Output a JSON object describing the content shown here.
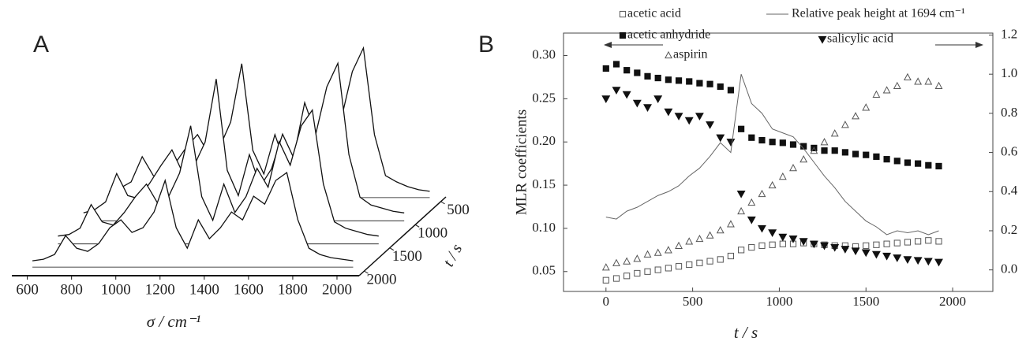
{
  "chart_data": [
    {
      "type": "waterfall",
      "panel_label": "A",
      "xlabel": "σ / cm⁻¹",
      "zlabel": "t / s",
      "xlim": [
        530,
        2100
      ],
      "xticks": [
        600,
        800,
        1000,
        1200,
        1400,
        1600,
        1800,
        2000
      ],
      "zlim": [
        400,
        2100
      ],
      "zticks": [
        500,
        1000,
        1500,
        2000
      ],
      "color": "#111111",
      "x": [
        600,
        650,
        700,
        750,
        800,
        850,
        900,
        950,
        1000,
        1050,
        1100,
        1150,
        1200,
        1250,
        1300,
        1350,
        1400,
        1450,
        1500,
        1550,
        1600,
        1650,
        1700,
        1750,
        1800,
        1850,
        1900,
        1950,
        2000,
        2050
      ],
      "spectra": [
        {
          "t": 500,
          "values": [
            0.04,
            0.06,
            0.1,
            0.26,
            0.14,
            0.12,
            0.22,
            0.32,
            0.4,
            0.28,
            0.32,
            0.48,
            0.85,
            0.3,
            0.15,
            0.4,
            0.2,
            0.3,
            0.5,
            0.38,
            0.7,
            0.5,
            0.8,
            0.95,
            0.4,
            0.14,
            0.1,
            0.07,
            0.05,
            0.04
          ]
        },
        {
          "t": 1000,
          "values": [
            0.05,
            0.07,
            0.12,
            0.3,
            0.16,
            0.14,
            0.24,
            0.35,
            0.45,
            0.3,
            0.35,
            0.5,
            0.9,
            0.32,
            0.16,
            0.42,
            0.22,
            0.33,
            0.55,
            0.4,
            0.75,
            0.55,
            0.85,
            1.0,
            0.42,
            0.15,
            0.1,
            0.08,
            0.06,
            0.05
          ]
        },
        {
          "t": 1500,
          "values": [
            0.05,
            0.06,
            0.1,
            0.25,
            0.14,
            0.12,
            0.2,
            0.3,
            0.38,
            0.26,
            0.3,
            0.45,
            0.75,
            0.3,
            0.15,
            0.38,
            0.2,
            0.3,
            0.48,
            0.36,
            0.65,
            0.5,
            0.75,
            0.85,
            0.38,
            0.14,
            0.1,
            0.08,
            0.06,
            0.05
          ]
        },
        {
          "t": 2000,
          "values": [
            0.04,
            0.05,
            0.08,
            0.2,
            0.12,
            0.1,
            0.15,
            0.25,
            0.3,
            0.22,
            0.25,
            0.35,
            0.55,
            0.25,
            0.12,
            0.3,
            0.18,
            0.25,
            0.35,
            0.3,
            0.45,
            0.4,
            0.55,
            0.6,
            0.3,
            0.12,
            0.08,
            0.06,
            0.05,
            0.04
          ]
        }
      ]
    },
    {
      "type": "scatter",
      "panel_label": "B",
      "xlabel": "t / s",
      "ylabel": "MLR coefficients",
      "xlim": [
        -245,
        2232
      ],
      "xticks": [
        0,
        500,
        1000,
        1500,
        2000
      ],
      "ylim": [
        0.027,
        0.326
      ],
      "yticks": [
        {
          "value": 0.05,
          "label": "0.05"
        },
        {
          "value": 0.1,
          "label": "0.10"
        },
        0.15,
        {
          "value": 0.2,
          "label": "0.20"
        },
        0.25,
        {
          "value": 0.3,
          "label": "0.30"
        }
      ],
      "y2lim": [
        -0.11,
        1.21
      ],
      "y2ticks": [
        {
          "value": 0,
          "label": "0.0"
        },
        0.2,
        0.4,
        0.6,
        0.8,
        {
          "value": 1,
          "label": "1.0"
        },
        1.2
      ],
      "x": [
        0,
        60,
        120,
        180,
        240,
        300,
        360,
        420,
        480,
        540,
        600,
        660,
        720,
        780,
        840,
        900,
        960,
        1020,
        1080,
        1140,
        1200,
        1260,
        1320,
        1380,
        1440,
        1500,
        1560,
        1620,
        1680,
        1740,
        1800,
        1860,
        1920
      ],
      "series": [
        {
          "name": "acetic acid",
          "marker": "open-square",
          "color": "#555555",
          "values": [
            0.04,
            0.042,
            0.045,
            0.048,
            0.05,
            0.052,
            0.054,
            0.056,
            0.058,
            0.06,
            0.062,
            0.064,
            0.068,
            0.075,
            0.078,
            0.08,
            0.081,
            0.082,
            0.082,
            0.083,
            0.082,
            0.081,
            0.08,
            0.08,
            0.079,
            0.08,
            0.081,
            0.082,
            0.083,
            0.084,
            0.085,
            0.086,
            0.085
          ]
        },
        {
          "name": "acetic anhydride",
          "marker": "filled-square",
          "color": "#111111",
          "values": [
            0.285,
            0.29,
            0.283,
            0.28,
            0.276,
            0.274,
            0.272,
            0.271,
            0.27,
            0.268,
            0.267,
            0.264,
            0.26,
            0.215,
            0.205,
            0.202,
            0.2,
            0.199,
            0.197,
            0.195,
            0.193,
            0.19,
            0.19,
            0.188,
            0.186,
            0.185,
            0.183,
            0.18,
            0.178,
            0.176,
            0.175,
            0.173,
            0.172
          ]
        },
        {
          "name": "aspirin",
          "marker": "open-triangle",
          "color": "#555555",
          "values": [
            0.055,
            0.06,
            0.062,
            0.065,
            0.07,
            0.072,
            0.075,
            0.08,
            0.085,
            0.088,
            0.092,
            0.098,
            0.105,
            0.12,
            0.13,
            0.14,
            0.15,
            0.16,
            0.17,
            0.18,
            0.19,
            0.2,
            0.21,
            0.22,
            0.23,
            0.24,
            0.255,
            0.26,
            0.265,
            0.275,
            0.27,
            0.27,
            0.265
          ]
        },
        {
          "name": "salicylic acid",
          "marker": "filled-down-triangle",
          "color": "#111111",
          "values": [
            0.25,
            0.26,
            0.255,
            0.245,
            0.24,
            0.25,
            0.235,
            0.23,
            0.225,
            0.23,
            0.22,
            0.205,
            0.2,
            0.14,
            0.11,
            0.1,
            0.095,
            0.09,
            0.088,
            0.085,
            0.082,
            0.08,
            0.078,
            0.076,
            0.074,
            0.072,
            0.07,
            0.068,
            0.066,
            0.064,
            0.063,
            0.062,
            0.061
          ]
        },
        {
          "name": "Relative peak height at 1694 cm⁻¹",
          "marker": "line",
          "axis": "y2",
          "color": "#666666",
          "values": [
            0.27,
            0.26,
            0.3,
            0.32,
            0.35,
            0.38,
            0.4,
            0.43,
            0.48,
            0.52,
            0.58,
            0.65,
            0.6,
            1.0,
            0.85,
            0.8,
            0.72,
            0.7,
            0.68,
            0.62,
            0.55,
            0.48,
            0.42,
            0.35,
            0.3,
            0.25,
            0.22,
            0.18,
            0.2,
            0.19,
            0.2,
            0.18,
            0.2
          ]
        }
      ]
    }
  ]
}
